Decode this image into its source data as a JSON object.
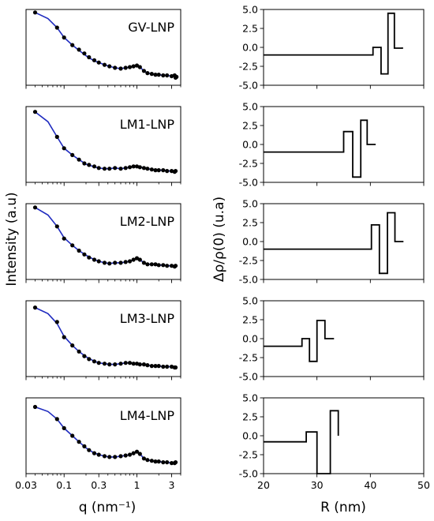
{
  "figure": {
    "left_ylabel": "Intensity (a.u)",
    "left_xlabel": "q (nm⁻¹)",
    "right_ylabel": "Δρ/ρ(0) (u.a)",
    "right_xlabel": "R (nm)"
  },
  "colors": {
    "fit": "#1f2bbf",
    "data": "#000000",
    "profile": "#000000"
  },
  "chart_data": [
    {
      "type": "scatter",
      "panel": "saxs",
      "title": "GV-LNP",
      "x_scale": "log",
      "xlim": [
        0.03,
        4.0
      ],
      "x_ticks": [
        "0.03",
        "0.1",
        "0.3",
        "1",
        "3"
      ],
      "x_tick_values": [
        0.03,
        0.1,
        0.3,
        1,
        3
      ],
      "y_scale": "log",
      "ylim": [
        0.0,
        1.0
      ],
      "y_ticks": [],
      "series": [
        {
          "kind": "points",
          "x": [
            0.04,
            0.08,
            0.1,
            0.13,
            0.16,
            0.19,
            0.22,
            0.26,
            0.3,
            0.36,
            0.42,
            0.5,
            0.6,
            0.7,
            0.8,
            0.9,
            1.0,
            1.1,
            1.25,
            1.4,
            1.6,
            1.8,
            2.0,
            2.3,
            2.6,
            3.0,
            3.3,
            3.4,
            3.5
          ],
          "y": [
            0.96,
            0.76,
            0.63,
            0.53,
            0.47,
            0.42,
            0.37,
            0.33,
            0.3,
            0.27,
            0.25,
            0.23,
            0.22,
            0.23,
            0.24,
            0.25,
            0.26,
            0.24,
            0.19,
            0.16,
            0.15,
            0.14,
            0.14,
            0.13,
            0.13,
            0.12,
            0.13,
            0.1,
            0.11
          ]
        },
        {
          "kind": "fit",
          "x": [
            0.04,
            0.06,
            0.08,
            0.1,
            0.13,
            0.16,
            0.2,
            0.25,
            0.3,
            0.36,
            0.42,
            0.5,
            0.6,
            0.7,
            0.8,
            0.9,
            1.0,
            1.1,
            1.25,
            1.4,
            1.6,
            1.8,
            2.0,
            2.3,
            2.6,
            3.0,
            3.4
          ],
          "y": [
            0.96,
            0.88,
            0.76,
            0.63,
            0.53,
            0.46,
            0.39,
            0.33,
            0.3,
            0.27,
            0.25,
            0.23,
            0.22,
            0.23,
            0.24,
            0.25,
            0.26,
            0.24,
            0.19,
            0.16,
            0.15,
            0.14,
            0.14,
            0.13,
            0.13,
            0.12,
            0.12
          ]
        }
      ]
    },
    {
      "type": "line",
      "panel": "profile",
      "xlim": [
        20,
        50
      ],
      "x_ticks": [
        20,
        30,
        40,
        50
      ],
      "ylim": [
        -5.0,
        5.0
      ],
      "y_ticks": [
        "-5.0",
        "-2.5",
        "0.0",
        "2.5",
        "5.0"
      ],
      "y_tick_values": [
        -5.0,
        -2.5,
        0.0,
        2.5,
        5.0
      ],
      "series": [
        {
          "x": [
            20,
            40.5,
            40.5,
            42.0,
            42.0,
            43.3,
            43.3,
            44.5,
            44.5,
            46.0,
            46.0
          ],
          "y": [
            -1.0,
            -1.0,
            0.0,
            0.0,
            -3.5,
            -3.5,
            4.5,
            4.5,
            -0.1,
            -0.1,
            0.0
          ]
        }
      ]
    },
    {
      "type": "scatter",
      "panel": "saxs",
      "title": "LM1-LNP",
      "x_scale": "log",
      "xlim": [
        0.03,
        4.0
      ],
      "ylim": [
        0.0,
        1.0
      ],
      "series": [
        {
          "kind": "points",
          "x": [
            0.04,
            0.08,
            0.1,
            0.13,
            0.16,
            0.19,
            0.22,
            0.26,
            0.3,
            0.36,
            0.42,
            0.5,
            0.6,
            0.7,
            0.8,
            0.9,
            1.0,
            1.1,
            1.25,
            1.4,
            1.6,
            1.8,
            2.0,
            2.3,
            2.6,
            3.0,
            3.3,
            3.4
          ],
          "y": [
            0.93,
            0.6,
            0.45,
            0.36,
            0.3,
            0.25,
            0.23,
            0.21,
            0.19,
            0.18,
            0.18,
            0.19,
            0.18,
            0.19,
            0.2,
            0.21,
            0.21,
            0.2,
            0.19,
            0.18,
            0.17,
            0.16,
            0.16,
            0.16,
            0.15,
            0.15,
            0.14,
            0.15
          ]
        },
        {
          "kind": "fit",
          "x": [
            0.04,
            0.06,
            0.08,
            0.1,
            0.13,
            0.16,
            0.2,
            0.25,
            0.3,
            0.36,
            0.42,
            0.5,
            0.6,
            0.7,
            0.8,
            0.9,
            1.0,
            1.1,
            1.25,
            1.4,
            1.6,
            1.8,
            2.0,
            2.3,
            2.6,
            3.0,
            3.4
          ],
          "y": [
            0.93,
            0.8,
            0.6,
            0.45,
            0.36,
            0.3,
            0.24,
            0.21,
            0.19,
            0.18,
            0.18,
            0.19,
            0.18,
            0.19,
            0.2,
            0.21,
            0.21,
            0.2,
            0.19,
            0.18,
            0.17,
            0.16,
            0.16,
            0.16,
            0.15,
            0.15,
            0.15
          ]
        }
      ]
    },
    {
      "type": "line",
      "panel": "profile",
      "xlim": [
        20,
        50
      ],
      "ylim": [
        -5.0,
        5.0
      ],
      "y_ticks": [
        "-5.0",
        "-2.5",
        "0.0",
        "2.5",
        "5.0"
      ],
      "series": [
        {
          "x": [
            20,
            35.0,
            35.0,
            36.7,
            36.7,
            38.2,
            38.2,
            39.4,
            39.4,
            41.0,
            41.0
          ],
          "y": [
            -1.0,
            -1.0,
            1.7,
            1.7,
            -4.3,
            -4.3,
            3.2,
            3.2,
            0.0,
            0.0,
            0.0
          ]
        }
      ]
    },
    {
      "type": "scatter",
      "panel": "saxs",
      "title": "LM2-LNP",
      "x_scale": "log",
      "xlim": [
        0.03,
        4.0
      ],
      "ylim": [
        0.0,
        1.0
      ],
      "series": [
        {
          "kind": "points",
          "x": [
            0.04,
            0.08,
            0.1,
            0.13,
            0.16,
            0.19,
            0.22,
            0.26,
            0.3,
            0.36,
            0.42,
            0.5,
            0.6,
            0.7,
            0.8,
            0.9,
            1.0,
            1.1,
            1.25,
            1.4,
            1.6,
            1.8,
            2.0,
            2.3,
            2.6,
            3.0,
            3.3,
            3.4
          ],
          "y": [
            0.95,
            0.7,
            0.54,
            0.45,
            0.38,
            0.33,
            0.29,
            0.26,
            0.24,
            0.22,
            0.21,
            0.22,
            0.22,
            0.23,
            0.24,
            0.26,
            0.28,
            0.26,
            0.22,
            0.2,
            0.2,
            0.2,
            0.19,
            0.19,
            0.18,
            0.18,
            0.17,
            0.18
          ]
        },
        {
          "kind": "fit",
          "x": [
            0.04,
            0.06,
            0.08,
            0.1,
            0.13,
            0.16,
            0.2,
            0.25,
            0.3,
            0.36,
            0.42,
            0.5,
            0.6,
            0.7,
            0.8,
            0.9,
            1.0,
            1.1,
            1.25,
            1.4,
            1.6,
            1.8,
            2.0,
            2.3,
            2.6,
            3.0,
            3.4
          ],
          "y": [
            0.95,
            0.85,
            0.7,
            0.55,
            0.45,
            0.38,
            0.32,
            0.27,
            0.24,
            0.22,
            0.21,
            0.22,
            0.22,
            0.23,
            0.24,
            0.26,
            0.28,
            0.26,
            0.22,
            0.2,
            0.2,
            0.2,
            0.19,
            0.19,
            0.18,
            0.18,
            0.18
          ]
        }
      ]
    },
    {
      "type": "line",
      "panel": "profile",
      "xlim": [
        20,
        50
      ],
      "ylim": [
        -5.0,
        5.0
      ],
      "y_ticks": [
        "-5.0",
        "-2.5",
        "0.0",
        "2.5",
        "5.0"
      ],
      "series": [
        {
          "x": [
            20,
            40.2,
            40.2,
            41.7,
            41.7,
            43.2,
            43.2,
            44.6,
            44.6,
            46.2,
            46.2
          ],
          "y": [
            -1.0,
            -1.0,
            2.2,
            2.2,
            -4.2,
            -4.2,
            3.8,
            3.8,
            0.0,
            0.0,
            0.0
          ]
        }
      ]
    },
    {
      "type": "scatter",
      "panel": "saxs",
      "title": "LM3-LNP",
      "x_scale": "log",
      "xlim": [
        0.03,
        4.0
      ],
      "ylim": [
        0.0,
        1.0
      ],
      "series": [
        {
          "kind": "points",
          "x": [
            0.04,
            0.08,
            0.1,
            0.13,
            0.16,
            0.19,
            0.22,
            0.26,
            0.3,
            0.36,
            0.42,
            0.5,
            0.6,
            0.7,
            0.8,
            0.9,
            1.0,
            1.1,
            1.25,
            1.4,
            1.6,
            1.8,
            2.0,
            2.3,
            2.6,
            3.0,
            3.3,
            3.4
          ],
          "y": [
            0.91,
            0.72,
            0.52,
            0.41,
            0.33,
            0.27,
            0.23,
            0.2,
            0.18,
            0.17,
            0.16,
            0.16,
            0.17,
            0.18,
            0.18,
            0.17,
            0.17,
            0.16,
            0.16,
            0.15,
            0.14,
            0.14,
            0.14,
            0.13,
            0.13,
            0.13,
            0.12,
            0.12
          ]
        },
        {
          "kind": "fit",
          "x": [
            0.04,
            0.06,
            0.08,
            0.1,
            0.13,
            0.16,
            0.2,
            0.25,
            0.3,
            0.36,
            0.42,
            0.5,
            0.6,
            0.7,
            0.8,
            0.9,
            1.0,
            1.1,
            1.25,
            1.4,
            1.6,
            1.8,
            2.0,
            2.3,
            2.6,
            3.0,
            3.4
          ],
          "y": [
            0.91,
            0.83,
            0.7,
            0.53,
            0.41,
            0.33,
            0.26,
            0.21,
            0.18,
            0.17,
            0.16,
            0.16,
            0.17,
            0.18,
            0.18,
            0.17,
            0.17,
            0.16,
            0.16,
            0.15,
            0.14,
            0.14,
            0.14,
            0.13,
            0.13,
            0.13,
            0.12
          ]
        }
      ]
    },
    {
      "type": "line",
      "panel": "profile",
      "xlim": [
        20,
        50
      ],
      "ylim": [
        -5.0,
        5.0
      ],
      "y_ticks": [
        "-5.0",
        "-2.5",
        "0.0",
        "2.5",
        "5.0"
      ],
      "series": [
        {
          "x": [
            20,
            27.2,
            27.2,
            28.6,
            28.6,
            30.0,
            30.0,
            31.5,
            31.5,
            33.2,
            33.2
          ],
          "y": [
            -1.0,
            -1.0,
            0.0,
            0.0,
            -3.0,
            -3.0,
            2.4,
            2.4,
            0.0,
            0.0,
            0.0
          ]
        }
      ]
    },
    {
      "type": "scatter",
      "panel": "saxs",
      "title": "LM4-LNP",
      "x_scale": "log",
      "xlim": [
        0.03,
        4.0
      ],
      "ylim": [
        0.0,
        1.0
      ],
      "series": [
        {
          "kind": "points",
          "x": [
            0.04,
            0.08,
            0.1,
            0.13,
            0.16,
            0.19,
            0.22,
            0.26,
            0.3,
            0.36,
            0.42,
            0.5,
            0.6,
            0.7,
            0.8,
            0.9,
            1.0,
            1.1,
            1.25,
            1.4,
            1.6,
            1.8,
            2.0,
            2.3,
            2.6,
            3.0,
            3.3,
            3.4
          ],
          "y": [
            0.88,
            0.72,
            0.6,
            0.5,
            0.42,
            0.36,
            0.31,
            0.27,
            0.25,
            0.23,
            0.22,
            0.22,
            0.23,
            0.24,
            0.25,
            0.27,
            0.29,
            0.26,
            0.2,
            0.18,
            0.17,
            0.16,
            0.16,
            0.15,
            0.15,
            0.14,
            0.14,
            0.15
          ]
        },
        {
          "kind": "fit",
          "x": [
            0.04,
            0.06,
            0.08,
            0.1,
            0.13,
            0.16,
            0.2,
            0.25,
            0.3,
            0.36,
            0.42,
            0.5,
            0.6,
            0.7,
            0.8,
            0.9,
            1.0,
            1.1,
            1.25,
            1.4,
            1.6,
            1.8,
            2.0,
            2.3,
            2.6,
            3.0,
            3.4
          ],
          "y": [
            0.88,
            0.82,
            0.72,
            0.6,
            0.5,
            0.42,
            0.34,
            0.28,
            0.25,
            0.23,
            0.22,
            0.22,
            0.23,
            0.24,
            0.25,
            0.27,
            0.29,
            0.26,
            0.2,
            0.18,
            0.17,
            0.16,
            0.16,
            0.15,
            0.15,
            0.14,
            0.14
          ]
        }
      ]
    },
    {
      "type": "line",
      "panel": "profile",
      "xlim": [
        20,
        50
      ],
      "x_ticks": [
        20,
        30,
        40,
        50
      ],
      "ylim": [
        -5.0,
        5.0
      ],
      "y_ticks": [
        "-5.0",
        "-2.5",
        "0.0",
        "2.5",
        "5.0"
      ],
      "series": [
        {
          "x": [
            20,
            28.0,
            28.0,
            30.0,
            30.0,
            32.5,
            32.5,
            34.0,
            34.0
          ],
          "y": [
            -0.8,
            -0.8,
            0.5,
            0.5,
            -5.0,
            -5.0,
            3.3,
            3.3,
            0.0
          ]
        }
      ]
    }
  ]
}
